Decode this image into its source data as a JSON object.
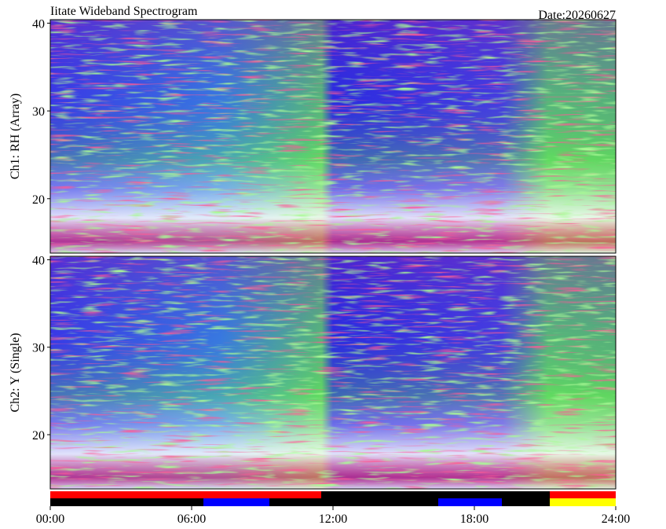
{
  "chart_data": {
    "type": "spectrogram",
    "title": "Iitate Wideband Spectrogram",
    "date": "Date:20260627",
    "xlim": [
      0,
      24
    ],
    "xticks": [
      {
        "value": 0,
        "label": "00:00"
      },
      {
        "value": 6,
        "label": "06:00"
      },
      {
        "value": 12,
        "label": "12:00"
      },
      {
        "value": 18,
        "label": "18:00"
      },
      {
        "value": 24,
        "label": "24:00"
      }
    ],
    "panels": [
      {
        "ylabel": "Ch1: RH (Array)",
        "ylim": [
          13.8,
          40.4
        ],
        "yticks": [
          20,
          30,
          40
        ]
      },
      {
        "ylabel": "Ch2: Y (Single)",
        "ylim": [
          13.8,
          40.4
        ],
        "yticks": [
          20,
          30,
          40
        ]
      }
    ]
  }
}
